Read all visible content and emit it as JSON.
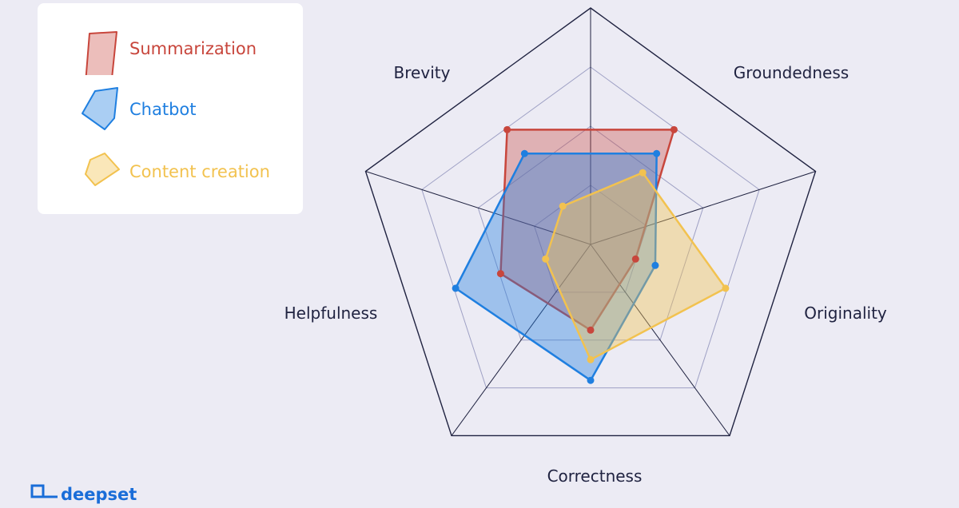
{
  "chart_data": {
    "type": "radar",
    "axes": [
      "Brevity",
      "Groundedness",
      "Originality",
      "Correctness",
      "Helpfulness"
    ],
    "range": [
      0,
      4
    ],
    "grid_levels": 4,
    "legend_position": "top-left",
    "series": [
      {
        "name": "Summarization",
        "values": [
          2.4,
          2.4,
          0.8,
          1.45,
          1.6
        ],
        "color": "#c8463c",
        "fill": "rgba(200,70,60,0.35)"
      },
      {
        "name": "Chatbot",
        "values": [
          1.9,
          1.9,
          1.15,
          2.3,
          2.4
        ],
        "color": "#1f7fe0",
        "fill": "rgba(31,127,224,0.38)"
      },
      {
        "name": "Content creation",
        "values": [
          0.8,
          1.5,
          2.4,
          1.95,
          0.8
        ],
        "color": "#f2c24f",
        "fill": "rgba(242,194,79,0.40)"
      }
    ]
  },
  "brand": {
    "name": "deepset",
    "icon": "deepset-logo-icon"
  }
}
